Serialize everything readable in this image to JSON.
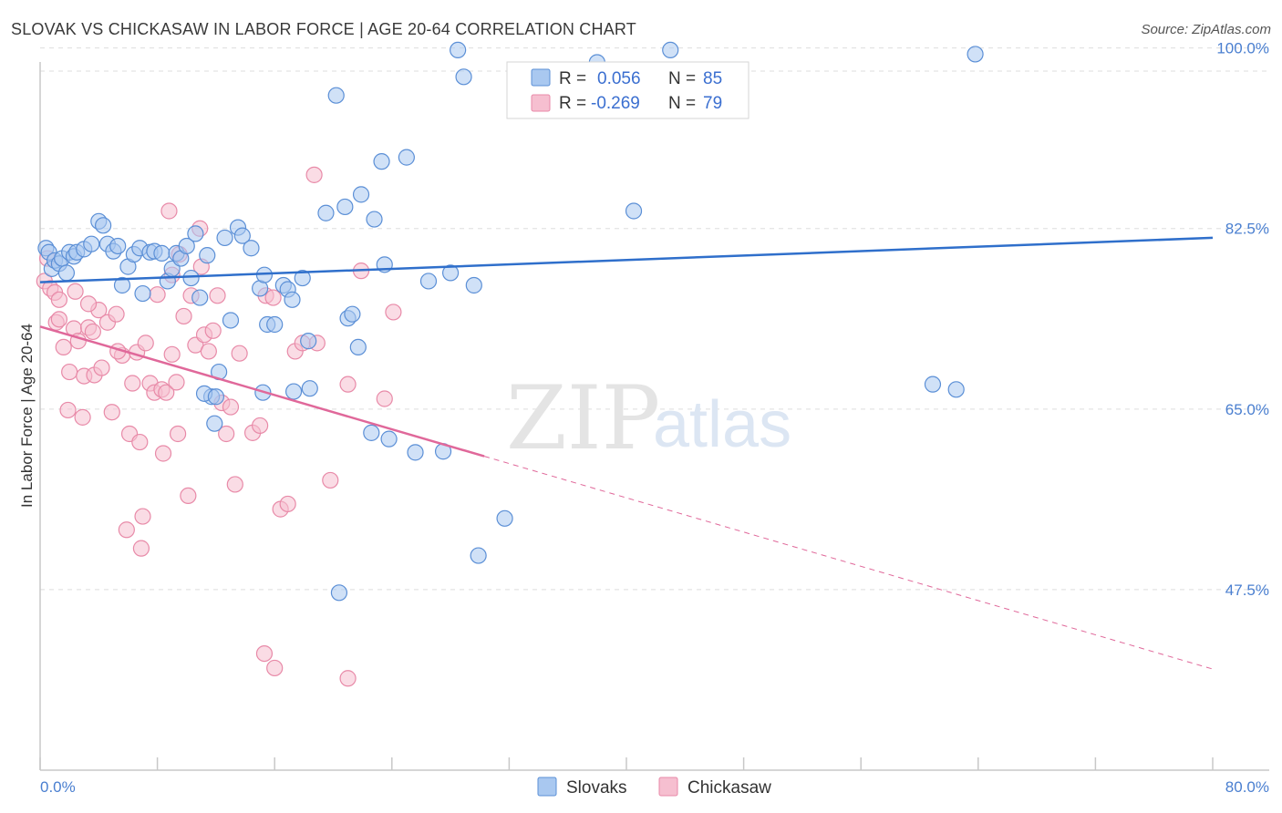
{
  "title": "SLOVAK VS CHICKASAW IN LABOR FORCE | AGE 20-64 CORRELATION CHART",
  "source": "Source: ZipAtlas.com",
  "colors": {
    "blue_fill": "#a9c8f0",
    "blue_stroke": "#5b8fd6",
    "blue_line": "#2f6fcb",
    "pink_fill": "#f6bfd0",
    "pink_stroke": "#e88aa8",
    "pink_line": "#e0689a",
    "tick_text": "#4a7fd0",
    "grid": "#dedede"
  },
  "legend": {
    "slovaks": {
      "r_label": "R =",
      "r_value": "0.056",
      "n_label": "N =",
      "n_value": "85"
    },
    "chickasaw": {
      "r_label": "R =",
      "r_value": "-0.269",
      "n_label": "N =",
      "n_value": "79"
    }
  },
  "watermark": {
    "zip": "ZIP",
    "atlas": "atlas"
  },
  "chart_data": {
    "type": "scatter",
    "title": "SLOVAK VS CHICKASAW IN LABOR FORCE | AGE 20-64 CORRELATION CHART",
    "xlabel": "",
    "ylabel": "In Labor Force | Age 20-64",
    "xlim": [
      0,
      80
    ],
    "ylim": [
      30,
      102
    ],
    "x_tick_labels": [
      "0.0%",
      "80.0%"
    ],
    "y_ticks": [
      47.5,
      65.0,
      82.5,
      100.0
    ],
    "y_tick_labels": [
      "47.5%",
      "65.0%",
      "82.5%",
      "100.0%"
    ],
    "series": [
      {
        "name": "Slovaks",
        "r": 0.056,
        "n": 85,
        "trend": {
          "x": [
            0,
            80
          ],
          "y": [
            77.3,
            81.6
          ],
          "dashed_from": null
        },
        "points": [
          [
            0.4,
            80.6
          ],
          [
            0.6,
            80.2
          ],
          [
            0.8,
            78.6
          ],
          [
            1.0,
            79.4
          ],
          [
            1.3,
            79.1
          ],
          [
            1.5,
            79.6
          ],
          [
            1.8,
            78.2
          ],
          [
            2.0,
            80.2
          ],
          [
            2.3,
            79.8
          ],
          [
            2.5,
            80.2
          ],
          [
            3.0,
            80.5
          ],
          [
            3.5,
            81.0
          ],
          [
            4.0,
            83.2
          ],
          [
            4.3,
            82.8
          ],
          [
            4.6,
            81.0
          ],
          [
            5.0,
            80.3
          ],
          [
            5.3,
            80.8
          ],
          [
            5.6,
            77.0
          ],
          [
            6.0,
            78.8
          ],
          [
            6.4,
            80.0
          ],
          [
            6.8,
            80.6
          ],
          [
            7.0,
            76.2
          ],
          [
            7.5,
            80.2
          ],
          [
            7.8,
            80.3
          ],
          [
            8.3,
            80.1
          ],
          [
            8.7,
            77.4
          ],
          [
            9.0,
            78.6
          ],
          [
            9.3,
            80.1
          ],
          [
            9.6,
            79.6
          ],
          [
            10.0,
            80.8
          ],
          [
            10.3,
            77.7
          ],
          [
            10.6,
            82.0
          ],
          [
            10.9,
            75.8
          ],
          [
            11.4,
            79.9
          ],
          [
            11.9,
            63.6
          ],
          [
            12.2,
            68.6
          ],
          [
            12.6,
            81.6
          ],
          [
            13.0,
            73.6
          ],
          [
            13.5,
            82.6
          ],
          [
            13.8,
            81.8
          ],
          [
            14.4,
            80.6
          ],
          [
            15.0,
            76.7
          ],
          [
            15.3,
            78.0
          ],
          [
            15.5,
            73.2
          ],
          [
            16.0,
            73.2
          ],
          [
            16.6,
            77.0
          ],
          [
            16.9,
            76.6
          ],
          [
            17.2,
            75.6
          ],
          [
            17.9,
            77.7
          ],
          [
            18.3,
            71.6
          ],
          [
            19.5,
            84.0
          ],
          [
            20.2,
            95.4
          ],
          [
            20.8,
            84.6
          ],
          [
            21.0,
            73.8
          ],
          [
            21.3,
            74.2
          ],
          [
            21.7,
            71.0
          ],
          [
            21.9,
            85.8
          ],
          [
            23.3,
            89.0
          ],
          [
            22.8,
            83.4
          ],
          [
            23.5,
            79.0
          ],
          [
            25.0,
            89.4
          ],
          [
            25.6,
            60.8
          ],
          [
            26.5,
            77.4
          ],
          [
            27.5,
            60.9
          ],
          [
            28.0,
            78.2
          ],
          [
            28.5,
            99.8
          ],
          [
            28.9,
            97.2
          ],
          [
            29.6,
            77.0
          ],
          [
            29.9,
            50.8
          ],
          [
            31.7,
            54.4
          ],
          [
            38.0,
            98.6
          ],
          [
            40.5,
            84.2
          ],
          [
            43.0,
            99.8
          ],
          [
            60.9,
            67.4
          ],
          [
            62.5,
            66.9
          ],
          [
            63.8,
            99.4
          ],
          [
            20.4,
            47.2
          ],
          [
            18.4,
            67.0
          ],
          [
            17.3,
            66.7
          ],
          [
            15.2,
            66.6
          ],
          [
            11.7,
            66.2
          ],
          [
            11.2,
            66.5
          ],
          [
            12.0,
            66.2
          ],
          [
            22.6,
            62.7
          ],
          [
            23.8,
            62.1
          ]
        ]
      },
      {
        "name": "Chickasaw",
        "r": -0.269,
        "n": 79,
        "trend": {
          "x": [
            0,
            80
          ],
          "y": [
            73.0,
            39.8
          ],
          "dashed_from": 30.3
        },
        "points": [
          [
            0.3,
            77.4
          ],
          [
            0.5,
            79.6
          ],
          [
            0.7,
            76.7
          ],
          [
            1.0,
            76.3
          ],
          [
            1.1,
            73.4
          ],
          [
            1.3,
            73.7
          ],
          [
            1.6,
            71.0
          ],
          [
            1.9,
            64.9
          ],
          [
            2.0,
            68.6
          ],
          [
            2.3,
            72.8
          ],
          [
            2.6,
            71.6
          ],
          [
            2.9,
            64.2
          ],
          [
            3.0,
            68.2
          ],
          [
            3.3,
            72.9
          ],
          [
            3.7,
            68.3
          ],
          [
            4.0,
            74.6
          ],
          [
            4.2,
            69.0
          ],
          [
            4.6,
            73.4
          ],
          [
            4.9,
            64.7
          ],
          [
            5.2,
            74.2
          ],
          [
            5.6,
            70.2
          ],
          [
            5.9,
            53.3
          ],
          [
            6.1,
            62.6
          ],
          [
            6.3,
            67.5
          ],
          [
            6.6,
            70.5
          ],
          [
            6.9,
            51.5
          ],
          [
            7.0,
            54.6
          ],
          [
            7.2,
            71.4
          ],
          [
            7.5,
            67.5
          ],
          [
            7.8,
            66.6
          ],
          [
            8.0,
            76.1
          ],
          [
            8.3,
            66.9
          ],
          [
            8.6,
            66.6
          ],
          [
            8.8,
            84.2
          ],
          [
            9.0,
            70.3
          ],
          [
            9.3,
            67.6
          ],
          [
            9.5,
            80.0
          ],
          [
            9.8,
            74.0
          ],
          [
            10.1,
            56.6
          ],
          [
            10.3,
            76.0
          ],
          [
            10.6,
            71.2
          ],
          [
            10.9,
            82.5
          ],
          [
            11.2,
            72.2
          ],
          [
            11.5,
            70.6
          ],
          [
            11.8,
            72.6
          ],
          [
            12.1,
            76.0
          ],
          [
            12.4,
            65.6
          ],
          [
            13.0,
            65.2
          ],
          [
            13.3,
            57.7
          ],
          [
            13.6,
            70.4
          ],
          [
            14.5,
            62.7
          ],
          [
            15.0,
            63.4
          ],
          [
            15.4,
            76.0
          ],
          [
            15.9,
            75.8
          ],
          [
            16.4,
            55.3
          ],
          [
            16.9,
            55.8
          ],
          [
            17.4,
            70.6
          ],
          [
            17.9,
            71.4
          ],
          [
            18.7,
            87.7
          ],
          [
            18.9,
            71.4
          ],
          [
            19.8,
            58.1
          ],
          [
            21.0,
            67.4
          ],
          [
            21.9,
            78.4
          ],
          [
            23.5,
            66.0
          ],
          [
            24.1,
            74.4
          ],
          [
            15.3,
            41.3
          ],
          [
            16.0,
            39.9
          ],
          [
            21.0,
            38.9
          ],
          [
            3.3,
            75.2
          ],
          [
            3.6,
            72.5
          ],
          [
            5.3,
            70.6
          ],
          [
            6.8,
            61.8
          ],
          [
            8.4,
            60.7
          ],
          [
            9.4,
            62.6
          ],
          [
            12.7,
            62.6
          ],
          [
            11.0,
            78.8
          ],
          [
            9.0,
            78.0
          ],
          [
            2.4,
            76.4
          ],
          [
            1.3,
            75.6
          ]
        ]
      }
    ]
  }
}
